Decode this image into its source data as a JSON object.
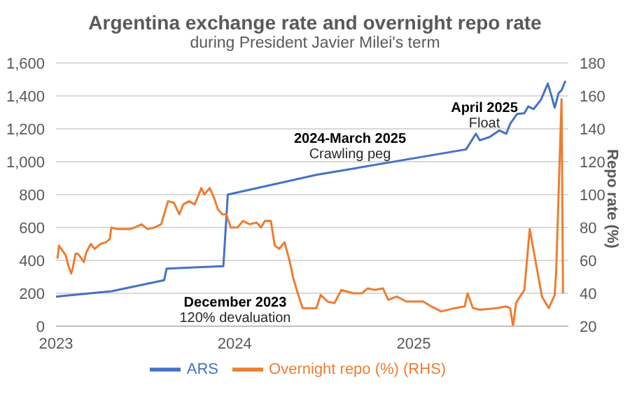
{
  "chart_data": {
    "type": "line",
    "title": "Argentina exchange rate and overnight repo rate",
    "subtitle": "during President Javier Milei's term",
    "y2label": "Repo rate (%)",
    "annotations": [
      "December 2023",
      "120% devaluation",
      "2024-March 2025",
      "Crawling peg",
      "April 2025",
      "Float"
    ],
    "xlim": [
      "2023-01-01",
      "2025-11-13"
    ],
    "xticks": [
      "2023",
      "2024",
      "2025"
    ],
    "ylim": [
      0,
      1600
    ],
    "yticks": [
      0,
      200,
      400,
      600,
      800,
      {
        "value": 1000,
        "label": "1,000"
      },
      {
        "value": 1200,
        "label": "1,200"
      },
      {
        "value": 1400,
        "label": "1,400"
      },
      {
        "value": 1600,
        "label": "1,600"
      }
    ],
    "y2lim": [
      20,
      180
    ],
    "y2ticks": [
      20,
      40,
      60,
      80,
      100,
      120,
      140,
      160,
      180
    ],
    "grid": "y",
    "legend": "bottom",
    "marker": "none",
    "line_style": "solid",
    "series": [
      {
        "name": "ARS",
        "color": "#4472c4",
        "axis": "y",
        "x": [
          "2023-01-01",
          "2023-04-25",
          "2023-08-10",
          "2023-08-15",
          "2023-12-09",
          "2023-12-18",
          "2024-06-16",
          "2025-04-18",
          "2025-05-08",
          "2025-05-16",
          "2025-06-05",
          "2025-06-25",
          "2025-07-09",
          "2025-07-17",
          "2025-07-31",
          "2025-08-15",
          "2025-08-23",
          "2025-09-03",
          "2025-09-18",
          "2025-10-02",
          "2025-10-10",
          "2025-10-16",
          "2025-10-24",
          "2025-10-30",
          "2025-11-07"
        ],
        "values": [
          180,
          213,
          280,
          350,
          365,
          800,
          920,
          1075,
          1170,
          1130,
          1150,
          1190,
          1170,
          1230,
          1290,
          1295,
          1336,
          1320,
          1377,
          1475,
          1394,
          1328,
          1418,
          1434,
          1492
        ]
      },
      {
        "name": "Overnight repo (%) (RHS)",
        "color": "#ed7d31",
        "axis": "y2",
        "x": [
          "2023-01-04",
          "2023-01-07",
          "2023-01-21",
          "2023-01-26",
          "2023-02-01",
          "2023-02-04",
          "2023-02-10",
          "2023-02-15",
          "2023-02-27",
          "2023-03-04",
          "2023-03-13",
          "2023-03-21",
          "2023-04-02",
          "2023-04-13",
          "2023-04-21",
          "2023-04-24",
          "2023-05-06",
          "2023-05-17",
          "2023-05-31",
          "2023-06-11",
          "2023-06-25",
          "2023-07-07",
          "2023-07-21",
          "2023-08-04",
          "2023-08-18",
          "2023-08-30",
          "2023-09-10",
          "2023-09-18",
          "2023-09-30",
          "2023-10-11",
          "2023-10-17",
          "2023-10-25",
          "2023-10-31",
          "2023-11-11",
          "2023-11-20",
          "2023-11-28",
          "2023-12-07",
          "2023-12-15",
          "2023-12-24",
          "2024-01-07",
          "2024-01-18",
          "2024-02-01",
          "2024-02-15",
          "2024-02-24",
          "2024-03-03",
          "2024-03-15",
          "2024-03-23",
          "2024-04-01",
          "2024-04-12",
          "2024-04-23",
          "2024-04-29",
          "2024-05-10",
          "2024-05-19",
          "2024-05-27",
          "2024-06-16",
          "2024-06-25",
          "2024-07-09",
          "2024-07-23",
          "2024-08-06",
          "2024-08-31",
          "2024-09-17",
          "2024-09-29",
          "2024-10-13",
          "2024-10-30",
          "2024-11-10",
          "2024-11-27",
          "2024-12-17",
          "2025-01-20",
          "2025-02-06",
          "2025-02-26",
          "2025-03-26",
          "2025-04-15",
          "2025-04-21",
          "2025-05-02",
          "2025-05-16",
          "2025-06-19",
          "2025-07-09",
          "2025-07-17",
          "2025-07-23",
          "2025-07-29",
          "2025-08-06",
          "2025-08-15",
          "2025-08-26",
          "2025-09-06",
          "2025-09-20",
          "2025-10-04",
          "2025-10-16",
          "2025-10-19",
          "2025-10-30",
          "2025-11-02"
        ],
        "values": [
          61,
          69,
          63,
          57,
          52,
          55,
          64,
          64,
          59,
          65,
          70,
          67,
          70,
          71,
          73,
          80,
          79,
          79,
          79,
          80,
          82,
          79,
          80,
          82,
          96,
          95,
          88,
          94,
          96,
          94,
          98,
          104,
          100,
          104,
          98,
          91,
          88,
          88,
          80,
          80,
          84,
          82,
          83,
          80,
          84,
          84,
          69,
          67,
          71,
          59,
          50,
          39,
          31,
          31,
          31,
          39,
          35,
          34,
          42,
          40,
          40,
          43,
          42,
          43,
          36,
          38,
          35,
          35,
          32,
          29,
          31,
          32,
          40,
          31,
          30,
          31,
          32,
          31,
          20,
          34,
          38,
          42,
          79,
          61,
          38,
          31,
          39,
          53,
          158,
          40
        ]
      }
    ]
  }
}
